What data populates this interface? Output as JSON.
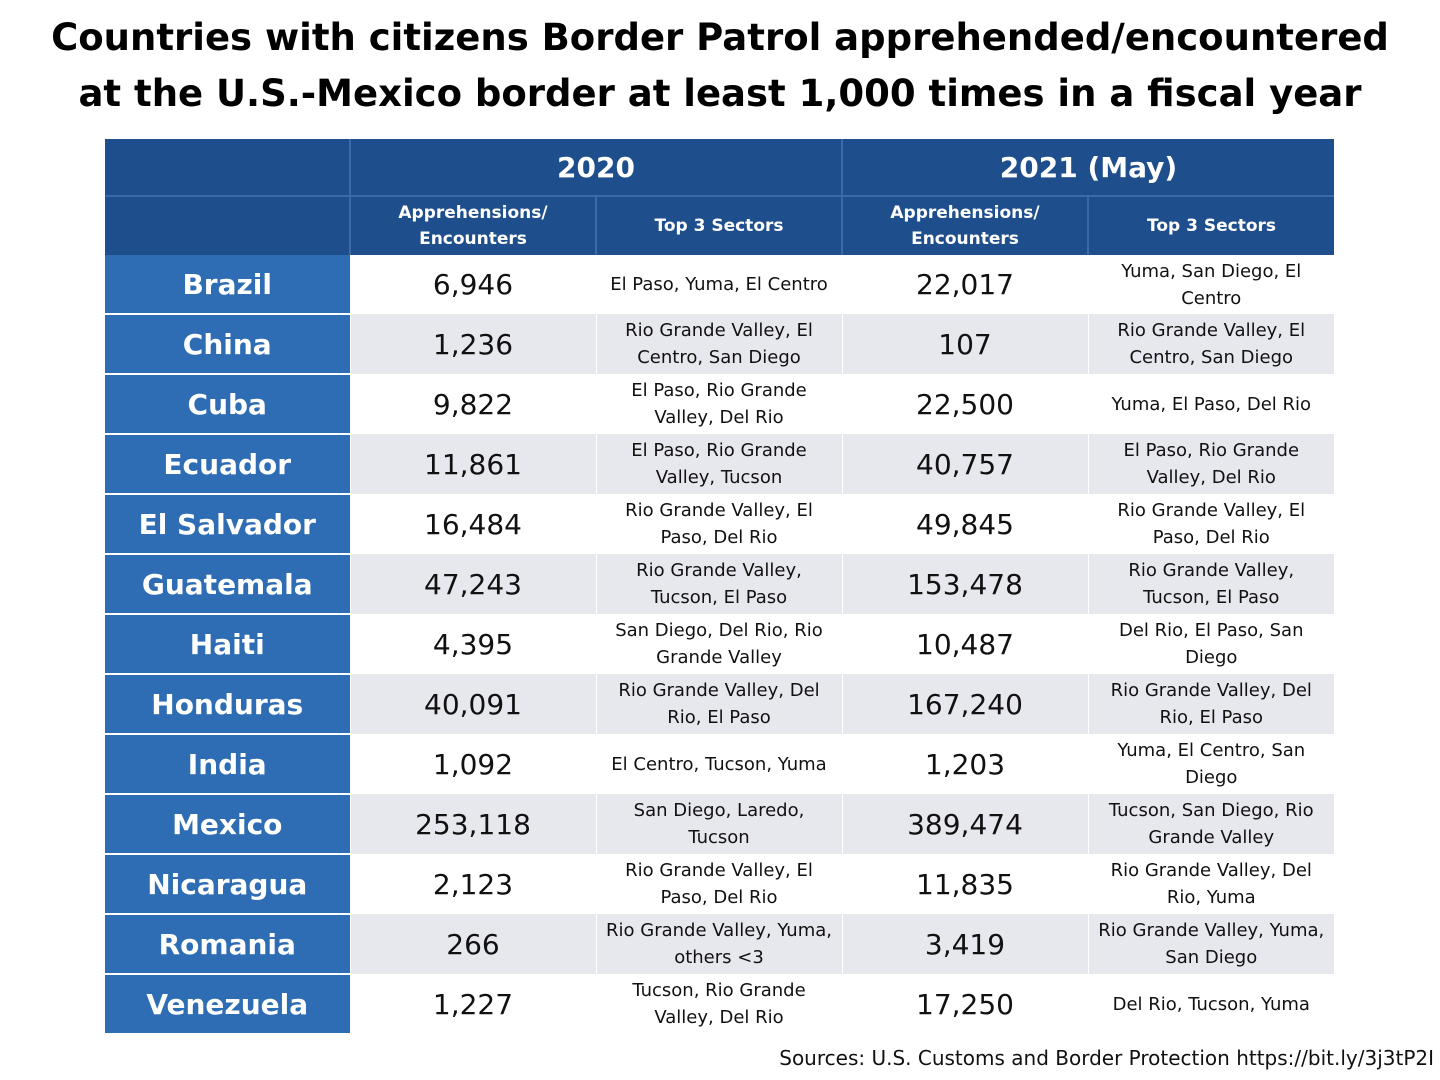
{
  "title_line1": "Countries with citizens Border Patrol apprehended/encountered",
  "title_line2": "at the U.S.-Mexico border at least 1,000 times in a fiscal year",
  "chart_data": {
    "type": "table",
    "year_headers": [
      "2020",
      "2021 (May)"
    ],
    "column_headers": {
      "apprehensions": "Apprehensions/ Encounters",
      "sectors": "Top 3 Sectors"
    },
    "rows": [
      {
        "country": "Brazil",
        "y2020": "6,946",
        "s2020": "El Paso, Yuma, El Centro",
        "y2021": "22,017",
        "s2021": "Yuma, San Diego, El Centro"
      },
      {
        "country": "China",
        "y2020": "1,236",
        "s2020": "Rio Grande Valley, El Centro, San Diego",
        "y2021": "107",
        "s2021": "Rio Grande Valley, El Centro, San Diego"
      },
      {
        "country": "Cuba",
        "y2020": "9,822",
        "s2020": "El Paso, Rio Grande Valley, Del Rio",
        "y2021": "22,500",
        "s2021": "Yuma, El Paso, Del Rio"
      },
      {
        "country": "Ecuador",
        "y2020": "11,861",
        "s2020": "El Paso, Rio Grande Valley, Tucson",
        "y2021": "40,757",
        "s2021": "El Paso, Rio Grande Valley, Del Rio"
      },
      {
        "country": "El Salvador",
        "y2020": "16,484",
        "s2020": "Rio Grande Valley, El Paso, Del Rio",
        "y2021": "49,845",
        "s2021": "Rio Grande Valley, El Paso, Del Rio"
      },
      {
        "country": "Guatemala",
        "y2020": "47,243",
        "s2020": "Rio Grande Valley, Tucson, El Paso",
        "y2021": "153,478",
        "s2021": "Rio Grande Valley, Tucson, El Paso"
      },
      {
        "country": "Haiti",
        "y2020": "4,395",
        "s2020": "San Diego, Del Rio, Rio Grande Valley",
        "y2021": "10,487",
        "s2021": "Del Rio, El Paso, San Diego"
      },
      {
        "country": "Honduras",
        "y2020": "40,091",
        "s2020": "Rio Grande Valley, Del Rio, El Paso",
        "y2021": "167,240",
        "s2021": "Rio Grande Valley, Del Rio, El Paso"
      },
      {
        "country": "India",
        "y2020": "1,092",
        "s2020": "El Centro, Tucson, Yuma",
        "y2021": "1,203",
        "s2021": "Yuma, El Centro, San Diego"
      },
      {
        "country": "Mexico",
        "y2020": "253,118",
        "s2020": "San Diego, Laredo, Tucson",
        "y2021": "389,474",
        "s2021": "Tucson, San Diego, Rio Grande Valley"
      },
      {
        "country": "Nicaragua",
        "y2020": "2,123",
        "s2020": "Rio Grande Valley, El Paso, Del Rio",
        "y2021": "11,835",
        "s2021": "Rio Grande Valley, Del Rio, Yuma"
      },
      {
        "country": "Romania",
        "y2020": "266",
        "s2020": "Rio Grande Valley, Yuma, others <3",
        "y2021": "3,419",
        "s2021": "Rio Grande Valley, Yuma, San Diego"
      },
      {
        "country": "Venezuela",
        "y2020": "1,227",
        "s2020": "Tucson, Rio Grande Valley, Del Rio",
        "y2021": "17,250",
        "s2021": "Del Rio, Tucson, Yuma"
      }
    ]
  },
  "source": "Sources: U.S. Customs and Border Protection https://bit.ly/3j3tP2I"
}
